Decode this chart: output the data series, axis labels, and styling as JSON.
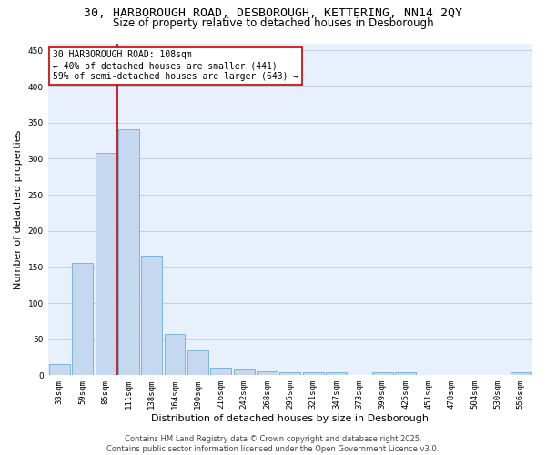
{
  "title1": "30, HARBOROUGH ROAD, DESBOROUGH, KETTERING, NN14 2QY",
  "title2": "Size of property relative to detached houses in Desborough",
  "xlabel": "Distribution of detached houses by size in Desborough",
  "ylabel": "Number of detached properties",
  "categories": [
    "33sqm",
    "59sqm",
    "85sqm",
    "111sqm",
    "138sqm",
    "164sqm",
    "190sqm",
    "216sqm",
    "242sqm",
    "268sqm",
    "295sqm",
    "321sqm",
    "347sqm",
    "373sqm",
    "399sqm",
    "425sqm",
    "451sqm",
    "478sqm",
    "504sqm",
    "530sqm",
    "556sqm"
  ],
  "values": [
    15,
    155,
    308,
    341,
    165,
    57,
    34,
    10,
    8,
    6,
    4,
    4,
    4,
    0,
    4,
    4,
    0,
    0,
    0,
    0,
    4
  ],
  "bar_color": "#c5d8f0",
  "bar_edge_color": "#6baed6",
  "bg_color": "#e8f0fb",
  "grid_color": "#c0cfe8",
  "vline_color": "#cc0000",
  "vline_x_index": 3,
  "annotation_text": "30 HARBOROUGH ROAD: 108sqm\n← 40% of detached houses are smaller (441)\n59% of semi-detached houses are larger (643) →",
  "annotation_box_color": "#cc0000",
  "footer": "Contains HM Land Registry data © Crown copyright and database right 2025.\nContains public sector information licensed under the Open Government Licence v3.0.",
  "ylim": [
    0,
    460
  ],
  "yticks": [
    0,
    50,
    100,
    150,
    200,
    250,
    300,
    350,
    400,
    450
  ],
  "title1_fontsize": 9.5,
  "title2_fontsize": 8.5,
  "xlabel_fontsize": 8,
  "ylabel_fontsize": 8,
  "tick_fontsize": 6.5,
  "annotation_fontsize": 7,
  "footer_fontsize": 6
}
